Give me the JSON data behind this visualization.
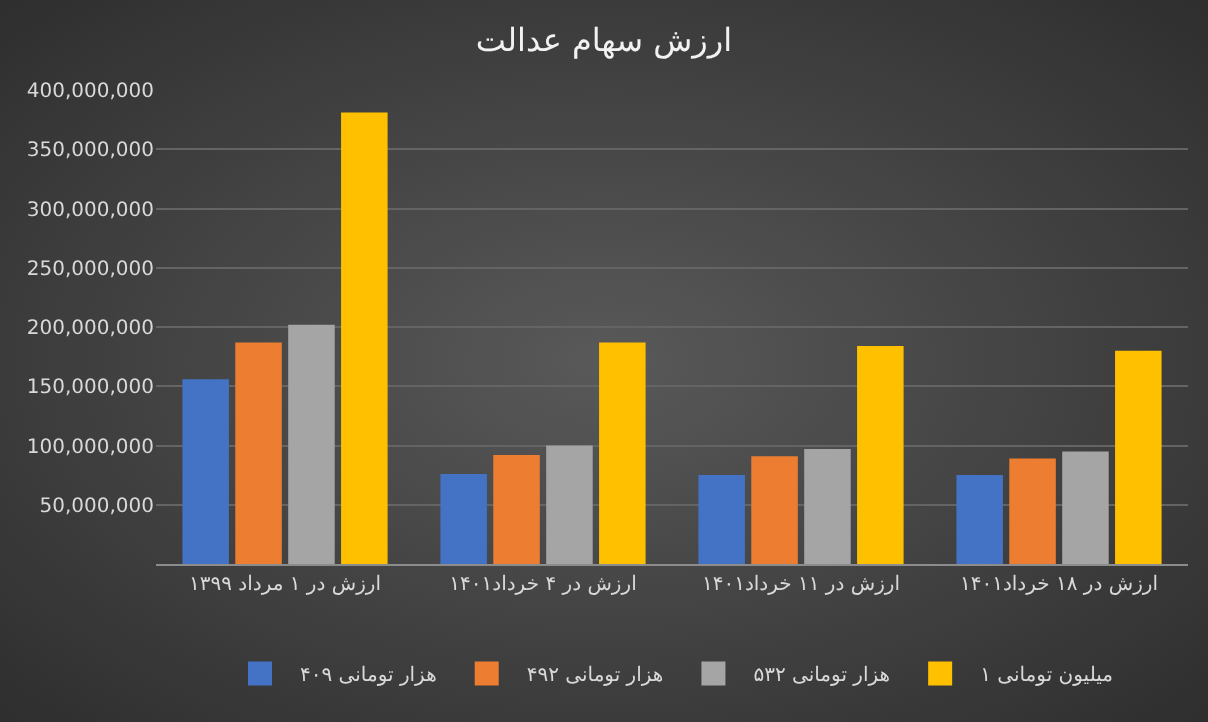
{
  "chart_data": {
    "type": "bar",
    "title": "ارزش سهام عدالت",
    "categories": [
      "ارزش در ۱ مرداد ۱۳۹۹",
      "ارزش در ۴ خرداد۱۴۰۱",
      "ارزش در ۱۱ خرداد۱۴۰۱",
      "ارزش در ۱۸ خرداد۱۴۰۱"
    ],
    "series": [
      {
        "name": "۴۰۹ هزار تومانی",
        "color": "#4472c4",
        "values": [
          156000000,
          76000000,
          75000000,
          75000000
        ]
      },
      {
        "name": "۴۹۲ هزار تومانی",
        "color": "#ed7d31",
        "values": [
          187000000,
          92000000,
          91000000,
          89000000
        ]
      },
      {
        "name": "۵۳۲ هزار تومانی",
        "color": "#a5a5a5",
        "values": [
          202000000,
          100000000,
          97000000,
          95000000
        ]
      },
      {
        "name": "۱ میلیون تومانی",
        "color": "#ffc000",
        "values": [
          381000000,
          187000000,
          184000000,
          180000000
        ]
      }
    ],
    "ylim": [
      0,
      400000000
    ],
    "yticks": [
      {
        "value": 50000000,
        "label": "50,000,000"
      },
      {
        "value": 100000000,
        "label": "100,000,000"
      },
      {
        "value": 150000000,
        "label": "150,000,000"
      },
      {
        "value": 200000000,
        "label": "200,000,000"
      },
      {
        "value": 250000000,
        "label": "250,000,000"
      },
      {
        "value": 300000000,
        "label": "300,000,000"
      },
      {
        "value": 350000000,
        "label": "350,000,000"
      },
      {
        "value": 400000000,
        "label": "400,000,000"
      }
    ],
    "grid": "y",
    "legend": "bottom"
  }
}
